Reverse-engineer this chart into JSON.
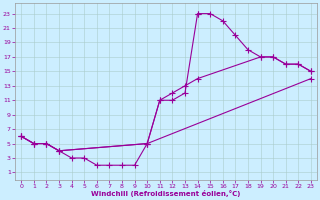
{
  "xlabel": "Windchill (Refroidissement éolien,°C)",
  "bg_color": "#cceeff",
  "line_color": "#990099",
  "xlim": [
    -0.5,
    23.5
  ],
  "ylim": [
    0,
    24.5
  ],
  "xticks": [
    0,
    1,
    2,
    3,
    4,
    5,
    6,
    7,
    8,
    9,
    10,
    11,
    12,
    13,
    14,
    15,
    16,
    17,
    18,
    19,
    20,
    21,
    22,
    23
  ],
  "yticks": [
    1,
    3,
    5,
    7,
    9,
    11,
    13,
    15,
    17,
    19,
    21,
    23
  ],
  "grid_color": "#aacccc",
  "series1_x": [
    0,
    1,
    2,
    3,
    4,
    5,
    6,
    7,
    8,
    9,
    10,
    11,
    12,
    13,
    14,
    14,
    15,
    16,
    17,
    18,
    19,
    20,
    21,
    22,
    23
  ],
  "series1_y": [
    6,
    5,
    5,
    4,
    3,
    3,
    2,
    2,
    2,
    2,
    5,
    11,
    11,
    12,
    23,
    23,
    23,
    22,
    20,
    18,
    17,
    17,
    16,
    16,
    15
  ],
  "series2_x": [
    0,
    1,
    2,
    3,
    10,
    11,
    12,
    13,
    14,
    19,
    20,
    21,
    22,
    23
  ],
  "series2_y": [
    6,
    5,
    5,
    4,
    5,
    11,
    12,
    13,
    14,
    17,
    17,
    16,
    16,
    15
  ],
  "series3_x": [
    0,
    1,
    2,
    3,
    10,
    23
  ],
  "series3_y": [
    6,
    5,
    5,
    4,
    5,
    14
  ]
}
